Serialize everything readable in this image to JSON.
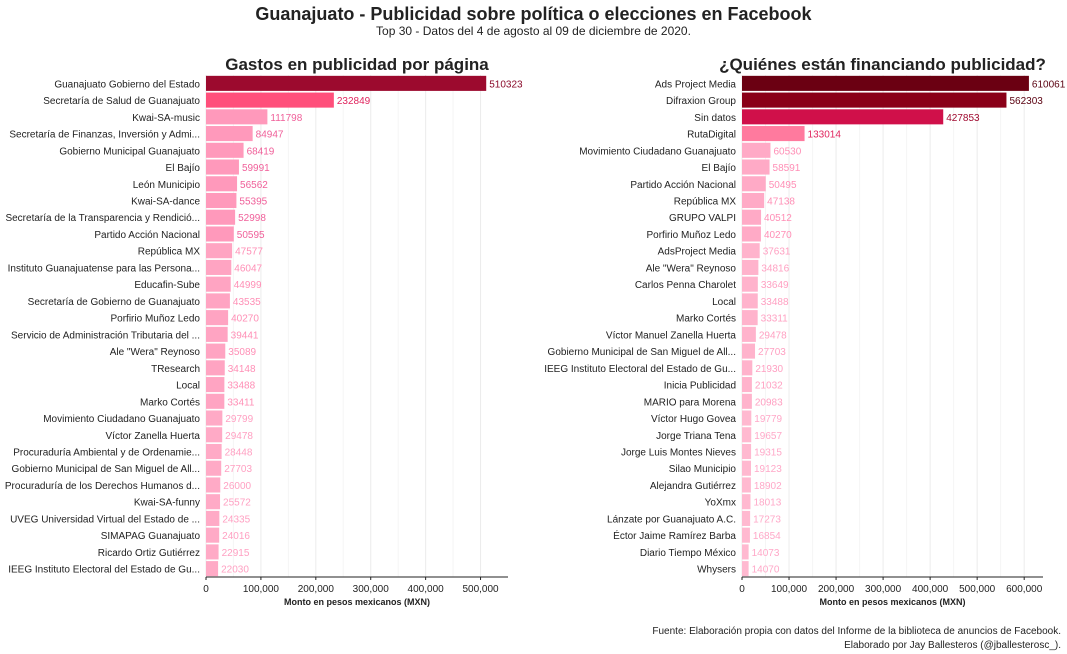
{
  "title": "Guanajuato - Publicidad sobre política o elecciones en Facebook",
  "subtitle": "Top 30 - Datos del 4 de agosto al 09 de diciembre de 2020.",
  "footer": {
    "line1": "Fuente: Elaboración propia con datos del Informe de la biblioteca de anuncios de Facebook.",
    "line2": "Elaborado por Jay Ballesteros (@jballesterosc_)."
  },
  "chart_data": [
    {
      "type": "bar",
      "orientation": "horizontal",
      "title": "Gastos en publicidad por página",
      "xlabel": "Monto en pesos mexicanos (MXN)",
      "xlim": [
        0,
        550000
      ],
      "xticks": [
        0,
        100000,
        200000,
        300000,
        400000,
        500000
      ],
      "xtick_labels": [
        "0",
        "100,000",
        "200,000",
        "300,000",
        "400,000",
        "500,000"
      ],
      "grid": true,
      "categories": [
        "Guanajuato Gobierno del Estado",
        "Secretaría de Salud de Guanajuato",
        "Kwai-SA-music",
        "Secretaría de Finanzas, Inversión y Admi...",
        "Gobierno Municipal Guanajuato",
        "El Bajío",
        "León Municipio",
        "Kwai-SA-dance",
        "Secretaría de la Transparencia y Rendició...",
        "Partido Acción Nacional",
        "República MX",
        "Instituto Guanajuatense para las Persona...",
        "Educafin-Sube",
        "Secretaría de Gobierno de Guanajuato",
        "Porfirio Muñoz Ledo",
        "Servicio de Administración Tributaria del ...",
        "Ale \"Wera\" Reynoso",
        "TResearch",
        "Local",
        "Marko Cortés",
        "Movimiento Ciudadano Guanajuato",
        "Víctor Zanella Huerta",
        "Procuraduría Ambiental y de Ordenamie...",
        "Gobierno Municipal de San Miguel de All...",
        "Procuraduría de los Derechos Humanos d...",
        "Kwai-SA-funny",
        "UVEG Universidad Virtual del Estado de ...",
        "SIMAPAG Guanajuato",
        "Ricardo Ortiz Gutiérrez",
        "IEEG Instituto Electoral del Estado de Gu..."
      ],
      "values": [
        510323,
        232849,
        111798,
        84947,
        68419,
        59991,
        56562,
        55395,
        52998,
        50595,
        47577,
        46047,
        44999,
        43535,
        40270,
        39441,
        35089,
        34148,
        33488,
        33411,
        29799,
        29478,
        28448,
        27703,
        26000,
        25572,
        24335,
        24016,
        22915,
        22030
      ],
      "colors": [
        "#9c0a2e",
        "#ff4f7b",
        "#ff99bb",
        "#ff99bb",
        "#ff99bb",
        "#ff99bb",
        "#ff99bb",
        "#ff99bb",
        "#ff99bb",
        "#ff99bb",
        "#ffa4c2",
        "#ffa4c2",
        "#ffa4c2",
        "#ffa4c2",
        "#ffa4c2",
        "#ffa4c2",
        "#ffa4c2",
        "#ffa4c2",
        "#ffa4c2",
        "#ffa4c2",
        "#ffaac6",
        "#ffaac6",
        "#ffaac6",
        "#ffaac6",
        "#ffaac6",
        "#ffaac6",
        "#ffaac6",
        "#ffaac6",
        "#ffaac6",
        "#ffaac6"
      ],
      "label_colors": [
        "#8a0a2a",
        "#e0245e",
        "#f0609a",
        "#f0609a",
        "#f0609a",
        "#f0609a",
        "#f0609a",
        "#f0609a",
        "#f0609a",
        "#f0609a",
        "#ff8fb6",
        "#ff8fb6",
        "#ff8fb6",
        "#ff8fb6",
        "#ff8fb6",
        "#ff8fb6",
        "#ff8fb6",
        "#ff8fb6",
        "#ff8fb6",
        "#ff8fb6",
        "#ffa0c2",
        "#ffa0c2",
        "#ffa0c2",
        "#ffa0c2",
        "#ffa0c2",
        "#ffa0c2",
        "#ffa0c2",
        "#ffa0c2",
        "#ffa0c2",
        "#ffa0c2"
      ]
    },
    {
      "type": "bar",
      "orientation": "horizontal",
      "title": "¿Quiénes están financiando publicidad?",
      "xlabel": "Monto en pesos mexicanos (MXN)",
      "xlim": [
        0,
        640000
      ],
      "xticks": [
        0,
        100000,
        200000,
        300000,
        400000,
        500000,
        600000
      ],
      "xtick_labels": [
        "0",
        "100,000",
        "200,000",
        "300,000",
        "400,000",
        "500,000",
        "600,000"
      ],
      "grid": true,
      "categories": [
        "Ads Project Media",
        "Difraxion Group",
        "Sin datos",
        "RutaDigital",
        "Movimiento Ciudadano Guanajuato",
        "El Bajío",
        "Partido Acción Nacional",
        "República MX",
        "GRUPO VALPI",
        "Porfirio Muñoz Ledo",
        "AdsProject Media",
        "Ale \"Wera\" Reynoso",
        "Carlos Penna Charolet",
        "Local",
        "Marko Cortés",
        "Víctor Manuel Zanella Huerta",
        "Gobierno Municipal de San Miguel de All...",
        "IEEG Instituto Electoral del Estado de Gu...",
        "Inicia Publicidad",
        "MARIO para Morena",
        "Víctor Hugo Govea",
        "Jorge Triana Tena",
        "Jorge Luis Montes Nieves",
        "Silao Municipio",
        "Alejandra Gutiérrez",
        "YoXmx",
        "Lánzate por Guanajuato A.C.",
        "Éctor Jaime Ramírez Barba",
        "Diario Tiempo México",
        "Whysers"
      ],
      "values": [
        610061,
        562303,
        427853,
        133014,
        60530,
        58591,
        50495,
        47138,
        40512,
        40270,
        37631,
        34816,
        33649,
        33488,
        33311,
        29478,
        27703,
        21930,
        21032,
        20983,
        19779,
        19657,
        19315,
        19123,
        18902,
        18013,
        17273,
        16854,
        14073,
        14070
      ],
      "colors": [
        "#6b0012",
        "#8a0018",
        "#d0104a",
        "#ff7a9e",
        "#ffaac6",
        "#ffaac6",
        "#ffaac6",
        "#ffaac6",
        "#ffaac6",
        "#ffaac6",
        "#ffb3cc",
        "#ffb3cc",
        "#ffb3cc",
        "#ffb3cc",
        "#ffb3cc",
        "#ffb3cc",
        "#ffb3cc",
        "#ffb3cc",
        "#ffb3cc",
        "#ffb3cc",
        "#ffb9d0",
        "#ffb9d0",
        "#ffb9d0",
        "#ffb9d0",
        "#ffb9d0",
        "#ffb9d0",
        "#ffb9d0",
        "#ffb9d0",
        "#ffb9d0",
        "#ffb9d0"
      ],
      "label_colors": [
        "#5a0010",
        "#5a0010",
        "#a00a30",
        "#e0245e",
        "#ff8fb6",
        "#ff8fb6",
        "#ff8fb6",
        "#ff8fb6",
        "#ff8fb6",
        "#ff8fb6",
        "#ffa0c2",
        "#ffa0c2",
        "#ffa0c2",
        "#ffa0c2",
        "#ffa0c2",
        "#ffa0c2",
        "#ffa0c2",
        "#ffa0c2",
        "#ffa0c2",
        "#ffa0c2",
        "#ffa8c8",
        "#ffa8c8",
        "#ffa8c8",
        "#ffa8c8",
        "#ffa8c8",
        "#ffa8c8",
        "#ffa8c8",
        "#ffa8c8",
        "#ffa8c8",
        "#ffa8c8"
      ]
    }
  ]
}
